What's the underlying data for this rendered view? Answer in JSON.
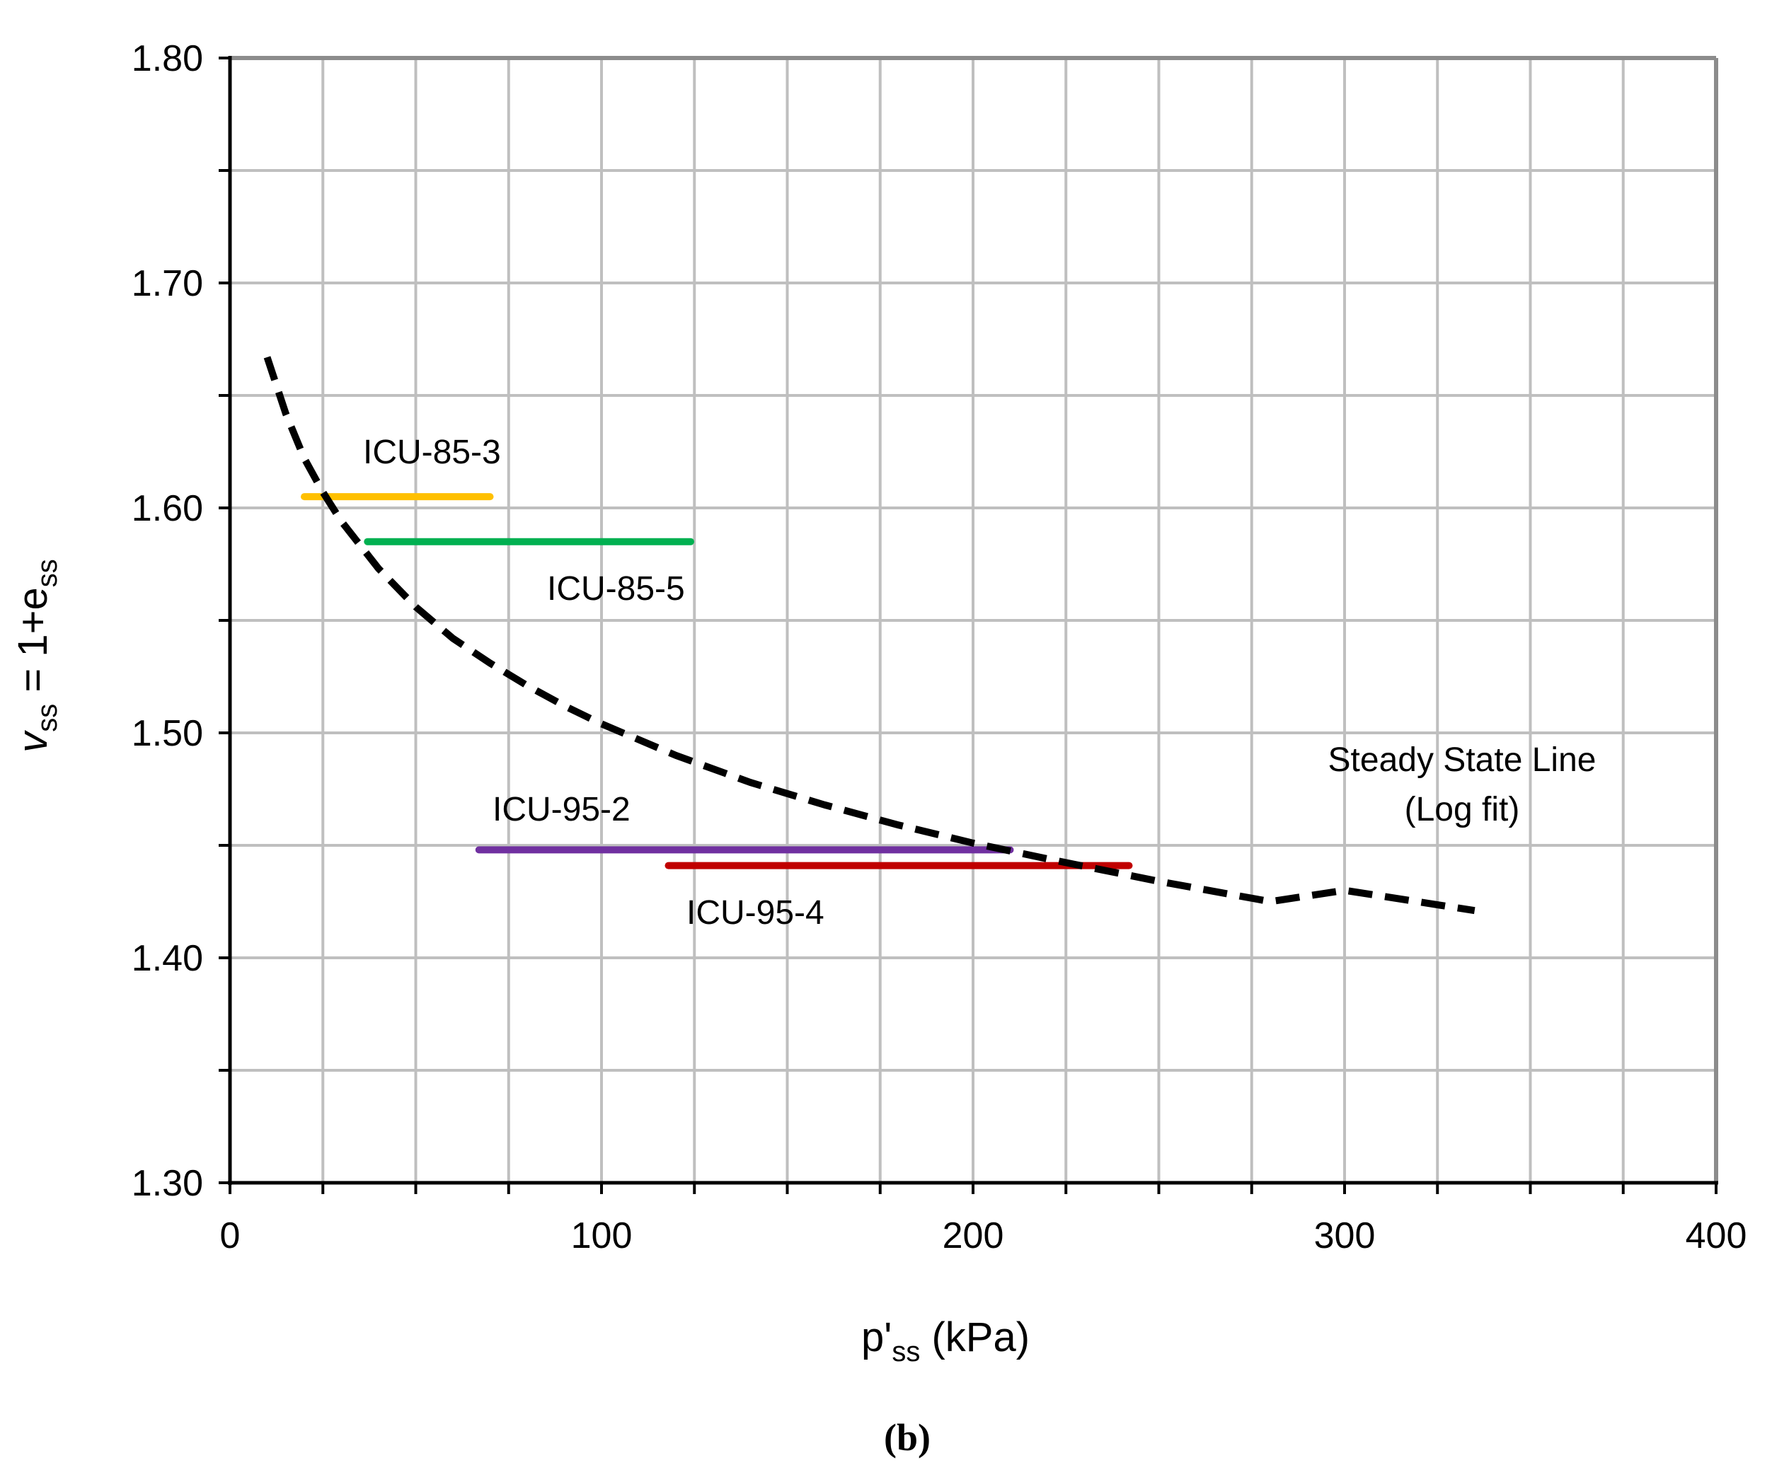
{
  "chart_data": {
    "type": "line",
    "caption": "(b)",
    "xlabel": {
      "main": "p'",
      "sub": "ss",
      "unit": " (kPa)"
    },
    "ylabel": {
      "italic": "v",
      "sub1": "ss",
      "mid": " = 1+e",
      "sub2": "ss"
    },
    "xlim": [
      0,
      400
    ],
    "ylim": [
      1.3,
      1.8
    ],
    "x_major_ticks": [
      0,
      100,
      200,
      300,
      400
    ],
    "x_tick_labels": [
      "0",
      "100",
      "200",
      "300",
      "400"
    ],
    "x_minor_step": 25,
    "y_major_ticks": [
      1.3,
      1.4,
      1.5,
      1.6,
      1.7,
      1.8
    ],
    "y_tick_labels": [
      "1.30",
      "1.40",
      "1.50",
      "1.60",
      "1.70",
      "1.80"
    ],
    "y_minor_step": 0.05,
    "grid": true,
    "steady_state_line": {
      "name": "Steady State Line (Log fit)",
      "label_line1": "Steady State Line",
      "label_line2": "(Log fit)",
      "color": "#000000",
      "style": "dashed",
      "x": [
        10,
        15,
        20,
        25,
        30,
        40,
        50,
        60,
        70,
        80,
        90,
        100,
        120,
        140,
        160,
        180,
        200,
        220,
        250,
        280,
        300,
        335
      ],
      "y": [
        1.667,
        1.642,
        1.622,
        1.607,
        1.594,
        1.573,
        1.556,
        1.542,
        1.531,
        1.521,
        1.512,
        1.504,
        1.49,
        1.478,
        1.468,
        1.459,
        1.451,
        1.444,
        1.434,
        1.425,
        1.43,
        1.421
      ]
    },
    "series": [
      {
        "name": "ICU-85-3",
        "label": "ICU-85-3",
        "color": "#FFC000",
        "x": [
          20,
          70
        ],
        "y": [
          1.605,
          1.605
        ]
      },
      {
        "name": "ICU-85-5",
        "label": "ICU-85-5",
        "color": "#00B050",
        "x": [
          37,
          124
        ],
        "y": [
          1.585,
          1.585
        ]
      },
      {
        "name": "ICU-95-2",
        "label": "ICU-95-2",
        "color": "#7030A0",
        "x": [
          67,
          210
        ],
        "y": [
          1.448,
          1.448
        ]
      },
      {
        "name": "ICU-95-4",
        "label": "ICU-95-4",
        "color": "#C00000",
        "x": [
          118,
          242
        ],
        "y": [
          1.441,
          1.441
        ]
      }
    ]
  }
}
